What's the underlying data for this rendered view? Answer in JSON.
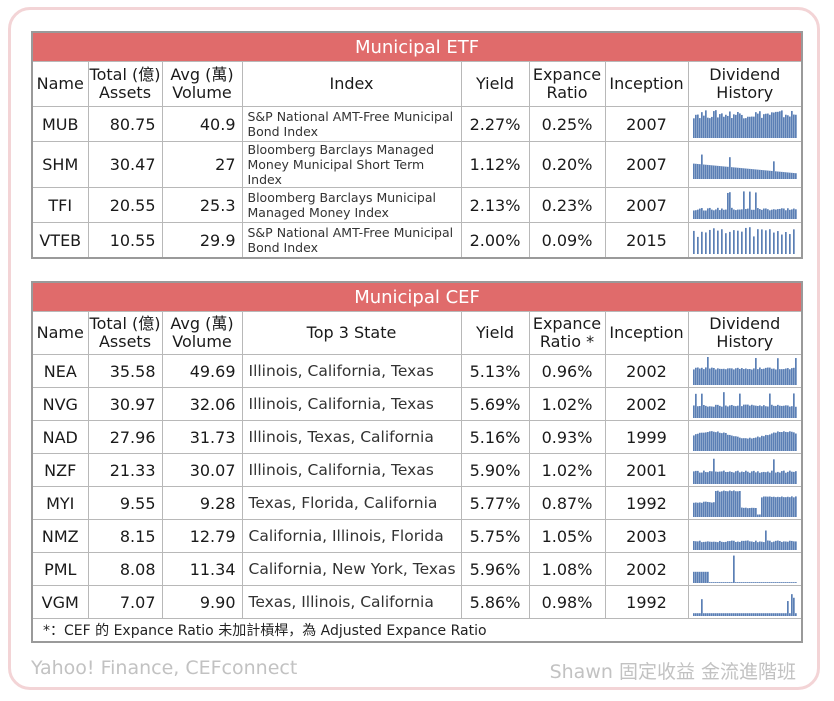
{
  "etf": {
    "title": "Municipal ETF",
    "headers": {
      "name": "Name",
      "assets_l1": "Total (億)",
      "assets_l2": "Assets",
      "volume_l1": "Avg (萬)",
      "volume_l2": "Volume",
      "index": "Index",
      "yield": "Yield",
      "expense_l1": "Expance",
      "expense_l2": "Ratio",
      "inception": "Inception",
      "dividend_l1": "Dividend",
      "dividend_l2": "History"
    },
    "rows": [
      {
        "name": "MUB",
        "assets": "80.75",
        "volume": "40.9",
        "index": "S&P National AMT-Free Municipal Bond Index",
        "yield": "2.27%",
        "expense": "0.25%",
        "inception": "2007",
        "spark": "dense-tall"
      },
      {
        "name": "SHM",
        "assets": "30.47",
        "volume": "27",
        "index": "Bloomberg Barclays Managed Money Municipal Short Term Index",
        "yield": "1.12%",
        "expense": "0.20%",
        "inception": "2007",
        "spark": "declining"
      },
      {
        "name": "TFI",
        "assets": "20.55",
        "volume": "25.3",
        "index": "Bloomberg Barclays Municipal Managed Money Index",
        "yield": "2.13%",
        "expense": "0.23%",
        "inception": "2007",
        "spark": "low-spikes"
      },
      {
        "name": "VTEB",
        "assets": "10.55",
        "volume": "29.9",
        "index": "S&P National AMT-Free Municipal Bond Index",
        "yield": "2.00%",
        "expense": "0.09%",
        "inception": "2015",
        "spark": "sparse-tall"
      }
    ]
  },
  "cef": {
    "title": "Municipal CEF",
    "headers": {
      "name": "Name",
      "assets_l1": "Total (億)",
      "assets_l2": "Assets",
      "volume_l1": "Avg (萬)",
      "volume_l2": "Volume",
      "states": "Top 3 State",
      "yield": "Yield",
      "expense_l1": "Expance",
      "expense_l2": "Ratio *",
      "inception": "Inception",
      "dividend_l1": "Dividend",
      "dividend_l2": "History"
    },
    "rows": [
      {
        "name": "NEA",
        "assets": "35.58",
        "volume": "49.69",
        "states": "Illinois, California, Texas",
        "yield": "5.13%",
        "expense": "0.96%",
        "inception": "2002",
        "spark": "flat-high"
      },
      {
        "name": "NVG",
        "assets": "30.97",
        "volume": "32.06",
        "states": "Illinois, California, Texas",
        "yield": "5.69%",
        "expense": "1.02%",
        "inception": "2002",
        "spark": "flat-mid"
      },
      {
        "name": "NAD",
        "assets": "27.96",
        "volume": "31.73",
        "states": "Illinois, Texas, California",
        "yield": "5.16%",
        "expense": "0.93%",
        "inception": "1999",
        "spark": "wave-high"
      },
      {
        "name": "NZF",
        "assets": "21.33",
        "volume": "30.07",
        "states": "Illinois, California, Texas",
        "yield": "5.90%",
        "expense": "1.02%",
        "inception": "2001",
        "spark": "flat-mid"
      },
      {
        "name": "MYI",
        "assets": "9.55",
        "volume": "9.28",
        "states": "Texas, Florida, California",
        "yield": "5.77%",
        "expense": "0.87%",
        "inception": "1992",
        "spark": "blocks"
      },
      {
        "name": "NMZ",
        "assets": "8.15",
        "volume": "12.79",
        "states": "California, Illinois, Florida",
        "yield": "5.75%",
        "expense": "1.05%",
        "inception": "2003",
        "spark": "low-flat"
      },
      {
        "name": "PML",
        "assets": "8.08",
        "volume": "11.34",
        "states": "California, New York, Texas",
        "yield": "5.96%",
        "expense": "1.08%",
        "inception": "2002",
        "spark": "sparse-low"
      },
      {
        "name": "VGM",
        "assets": "7.07",
        "volume": "9.90",
        "states": "Texas, Illinois, California",
        "yield": "5.86%",
        "expense": "0.98%",
        "inception": "1992",
        "spark": "minimal"
      }
    ],
    "footnote": "*：CEF 的 Expance Ratio 未加計槓桿，為 Adjusted Expance Ratio"
  },
  "source": "Yahoo! Finance, CEFconnect",
  "credit": "Shawn 固定收益 金流進階班",
  "colors": {
    "title_bar": "#e06b6b",
    "spark_bar": "#5b7fb5",
    "frame": "#f3d4d6",
    "watermark_text": "#c2c2c2"
  }
}
